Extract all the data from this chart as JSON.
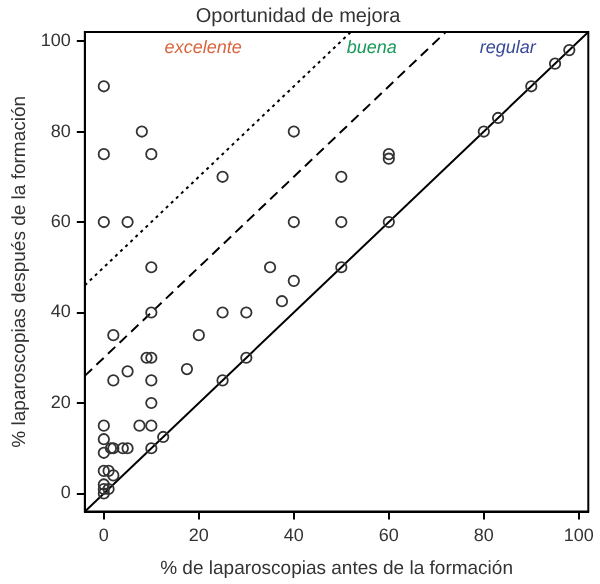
{
  "chart_data": {
    "type": "scatter",
    "title": "Oportunidad de mejora",
    "xlabel": "% de laparoscopias antes de la formación",
    "ylabel": "% laparoscopias después de la formación",
    "xlim": [
      -4,
      102
    ],
    "ylim": [
      -4,
      102
    ],
    "xticks": [
      0,
      20,
      40,
      60,
      80,
      100
    ],
    "yticks": [
      0,
      20,
      40,
      60,
      80,
      100
    ],
    "grid": false,
    "legend": false,
    "annotations": [
      "excelente",
      "buena",
      "regular"
    ],
    "series": [
      {
        "color": "#333333",
        "marker": "circle",
        "x": [
          0,
          0,
          0,
          5,
          8,
          10,
          10,
          25,
          40,
          40,
          35,
          40,
          50,
          50,
          50,
          60,
          60,
          60,
          80,
          83,
          90,
          95,
          98,
          2,
          10,
          25,
          30,
          37.5,
          20,
          9,
          10,
          30,
          17.5,
          5,
          2,
          10,
          25,
          10,
          0,
          7.5,
          10,
          0,
          12.5,
          0,
          1.5,
          2,
          4,
          5,
          10,
          0,
          1,
          2,
          0,
          0,
          1,
          0
        ],
        "values": [
          90,
          75,
          60,
          60,
          80,
          75,
          50,
          70,
          80,
          60,
          50,
          47,
          70,
          60,
          50,
          75,
          74,
          60,
          80,
          83,
          90,
          95,
          98,
          35,
          40,
          40,
          40,
          42.5,
          35,
          30,
          30,
          30,
          27.5,
          27,
          25,
          25,
          25,
          20,
          15,
          15,
          15,
          12,
          12.5,
          9,
          10,
          10,
          10,
          10,
          10,
          5,
          5,
          4,
          2,
          1,
          1,
          0
        ]
      },
      {
        "type": "line",
        "color": "#000000",
        "marker": "none",
        "line_style": "solid",
        "x": [
          -4,
          102
        ],
        "values": [
          -4,
          102
        ]
      },
      {
        "type": "line",
        "color": "#000000",
        "marker": "none",
        "line_style": "dashed",
        "x": [
          -4,
          72
        ],
        "values": [
          26,
          102
        ]
      },
      {
        "type": "line",
        "color": "#000000",
        "marker": "none",
        "line_style": "dotted",
        "x": [
          -4,
          52
        ],
        "values": [
          46,
          102
        ]
      }
    ]
  }
}
